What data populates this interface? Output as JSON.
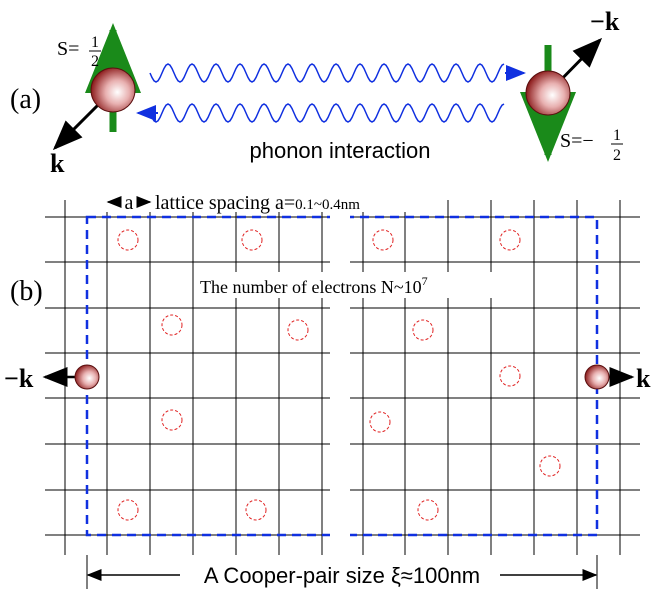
{
  "panel_a": {
    "label": "(a)",
    "left_spin": {
      "prefix": "S=",
      "numerator": "1",
      "denominator": "2"
    },
    "left_momentum": "k",
    "right_momentum": "−k",
    "right_spin": {
      "prefix": "S=−",
      "numerator": "1",
      "denominator": "2"
    },
    "interaction": "phonon interaction"
  },
  "panel_b": {
    "label": "(b)",
    "spacing_symbol": "a",
    "spacing_text": "lattice spacing a=",
    "spacing_value": "0.1~0.4nm",
    "electrons_text": "The number of electrons N~10",
    "electrons_exponent": "7",
    "left_momentum": "−k",
    "right_momentum": "k",
    "pair_size": "A Cooper-pair size ξ≈100nm"
  }
}
